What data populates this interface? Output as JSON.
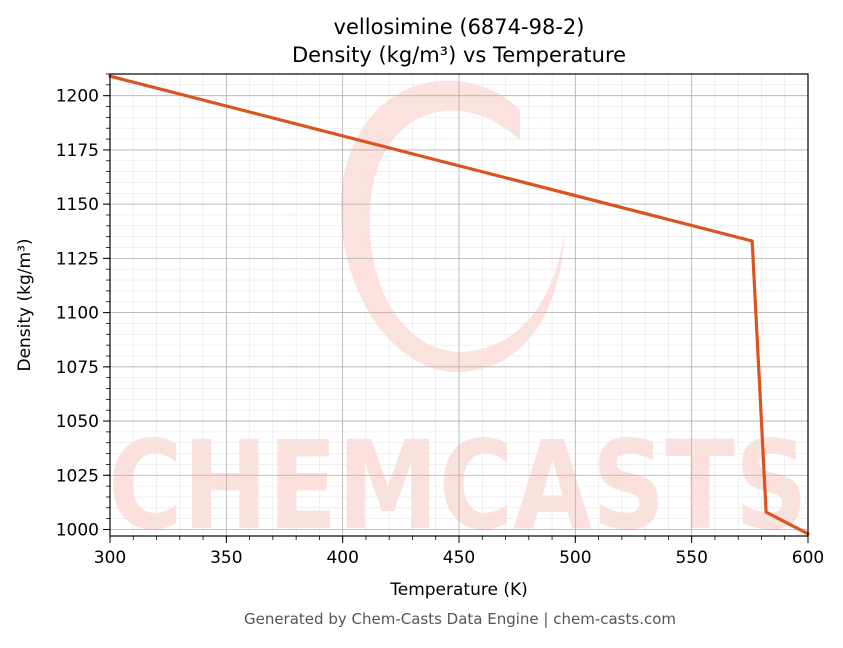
{
  "chart_data": {
    "type": "line",
    "title": "vellosimine (6874-98-2)",
    "subtitle": "Density (kg/m³) vs Temperature",
    "xlabel": "Temperature (K)",
    "ylabel": "Density (kg/m³)",
    "xlim": [
      300,
      600
    ],
    "ylim": [
      997,
      1210
    ],
    "x_ticks": [
      300,
      350,
      400,
      450,
      500,
      550,
      600
    ],
    "y_ticks": [
      1000,
      1025,
      1050,
      1075,
      1100,
      1125,
      1150,
      1175,
      1200
    ],
    "grid": true,
    "series": [
      {
        "color": "#d9541e",
        "x": [
          300,
          576,
          582,
          600
        ],
        "y": [
          1209,
          1133,
          1008,
          998
        ]
      }
    ]
  },
  "watermark_text": "CHEMCASTS",
  "footer": "Generated by Chem-Casts Data Engine | chem-casts.com"
}
